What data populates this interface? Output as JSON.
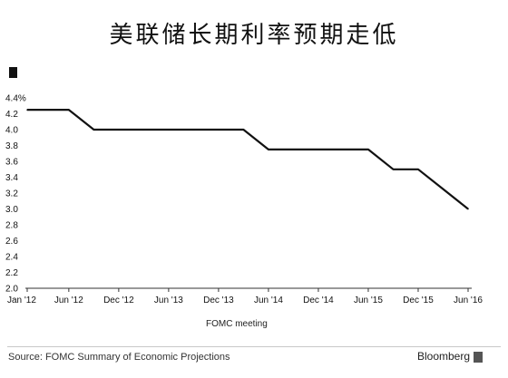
{
  "chart_data": {
    "type": "line",
    "title": "美联储长期利率预期走低",
    "xlabel": "FOMC meeting",
    "ylabel": "",
    "ylim": [
      2.0,
      4.4
    ],
    "y_ticks": [
      "2.0",
      "2.2",
      "2.4",
      "2.6",
      "2.8",
      "3.0",
      "3.2",
      "3.4",
      "3.6",
      "3.8",
      "4.0",
      "4.2",
      "4.4%"
    ],
    "x_ticks": [
      "Jan '12",
      "Jun '12",
      "Dec '12",
      "Jun '13",
      "Dec '13",
      "Jun '14",
      "Dec '14",
      "Jun '15",
      "Dec '15",
      "Jun '16"
    ],
    "grid": false,
    "series": [
      {
        "color": "#111111",
        "points": [
          {
            "x": "Jan '12",
            "y": 4.25
          },
          {
            "x": "Apr '12",
            "y": 4.25
          },
          {
            "x": "Jun '12",
            "y": 4.25
          },
          {
            "x": "Sep '12",
            "y": 4.0
          },
          {
            "x": "Dec '12",
            "y": 4.0
          },
          {
            "x": "Mar '13",
            "y": 4.0
          },
          {
            "x": "Jun '13",
            "y": 4.0
          },
          {
            "x": "Sep '13",
            "y": 4.0
          },
          {
            "x": "Dec '13",
            "y": 4.0
          },
          {
            "x": "Mar '14",
            "y": 4.0
          },
          {
            "x": "Jun '14",
            "y": 3.75
          },
          {
            "x": "Sep '14",
            "y": 3.75
          },
          {
            "x": "Dec '14",
            "y": 3.75
          },
          {
            "x": "Mar '15",
            "y": 3.75
          },
          {
            "x": "Jun '15",
            "y": 3.75
          },
          {
            "x": "Sep '15",
            "y": 3.5
          },
          {
            "x": "Dec '15",
            "y": 3.5
          },
          {
            "x": "Mar '16",
            "y": 3.25
          },
          {
            "x": "Jun '16",
            "y": 3.0
          }
        ]
      }
    ]
  },
  "footer": {
    "source": "Source: FOMC Summary of Economic Projections",
    "brand": "Bloomberg"
  }
}
